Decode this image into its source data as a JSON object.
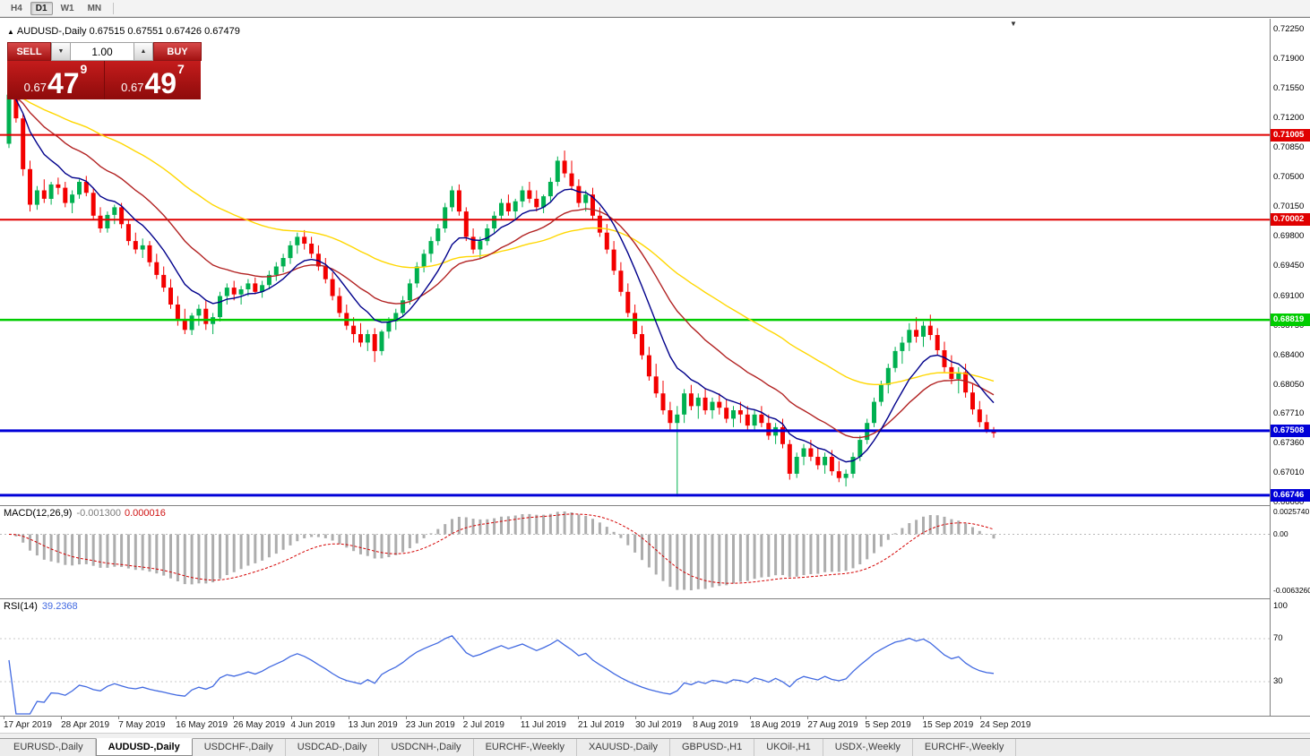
{
  "toolbar": {
    "periods": [
      "H4",
      "D1",
      "W1",
      "MN"
    ],
    "active": "D1"
  },
  "window": {
    "title_symbol": "AUDUSD-,Daily",
    "title_ohlc": "0.67515 0.67551 0.67426 0.67479"
  },
  "trade_panel": {
    "sell_label": "SELL",
    "buy_label": "BUY",
    "volume": "1.00",
    "sell_price": {
      "prefix": "0.67",
      "big": "47",
      "sup": "9"
    },
    "buy_price": {
      "prefix": "0.67",
      "big": "49",
      "sup": "7"
    }
  },
  "chart_data": {
    "type": "candlestick",
    "symbol": "AUDUSD-",
    "timeframe": "Daily",
    "colors": {
      "up": "#00B050",
      "down": "#F30000"
    },
    "y_axis": {
      "top_price": 0.7225,
      "bottom_price": 0.6666,
      "labels": [
        "0.72250",
        "0.71900",
        "0.71550",
        "0.71200",
        "0.70850",
        "0.70500",
        "0.70150",
        "0.69800",
        "0.69450",
        "0.69100",
        "0.68750",
        "0.68400",
        "0.68050",
        "0.67710",
        "0.67360",
        "0.67010",
        "0.66660"
      ]
    },
    "x_labels": [
      "17 Apr 2019",
      "28 Apr 2019",
      "7 May 2019",
      "16 May 2019",
      "26 May 2019",
      "4 Jun 2019",
      "13 Jun 2019",
      "23 Jun 2019",
      "2 Jul 2019",
      "11 Jul 2019",
      "21 Jul 2019",
      "30 Jul 2019",
      "8 Aug 2019",
      "18 Aug 2019",
      "27 Aug 2019",
      "5 Sep 2019",
      "15 Sep 2019",
      "24 Sep 2019"
    ],
    "h_lines": [
      {
        "price": 0.71005,
        "label": "0.71005",
        "color": "#E00000",
        "width": 2
      },
      {
        "price": 0.70002,
        "label": "0.70002",
        "color": "#E00000",
        "width": 2
      },
      {
        "price": 0.68819,
        "label": "0.68819",
        "color": "#00CC00",
        "width": 2.5
      },
      {
        "price": 0.67508,
        "label": "0.67508",
        "color": "#0000D8",
        "width": 3
      },
      {
        "price": 0.66746,
        "label": "0.66746",
        "color": "#0000D8",
        "width": 3
      }
    ],
    "moving_averages": [
      {
        "name": "ma-slow",
        "period": 50,
        "color": "#FFD700"
      },
      {
        "name": "ma-mid",
        "period": 21,
        "color": "#B22222"
      },
      {
        "name": "ma-fast",
        "period": 9,
        "color": "#00008B"
      }
    ],
    "candles": [
      [
        0.709,
        0.715,
        0.7085,
        0.7148
      ],
      [
        0.7148,
        0.7152,
        0.7115,
        0.712
      ],
      [
        0.712,
        0.7125,
        0.7052,
        0.706
      ],
      [
        0.706,
        0.707,
        0.701,
        0.7018
      ],
      [
        0.7018,
        0.704,
        0.7012,
        0.7035
      ],
      [
        0.7035,
        0.7048,
        0.702,
        0.7025
      ],
      [
        0.7025,
        0.7045,
        0.7018,
        0.7042
      ],
      [
        0.7042,
        0.705,
        0.703,
        0.7038
      ],
      [
        0.7038,
        0.7045,
        0.7015,
        0.702
      ],
      [
        0.702,
        0.7035,
        0.7008,
        0.703
      ],
      [
        0.703,
        0.7048,
        0.7025,
        0.7045
      ],
      [
        0.7045,
        0.7052,
        0.7028,
        0.7032
      ],
      [
        0.7032,
        0.7038,
        0.7,
        0.7005
      ],
      [
        0.7005,
        0.7015,
        0.6985,
        0.699
      ],
      [
        0.699,
        0.701,
        0.6985,
        0.7006
      ],
      [
        0.7006,
        0.7018,
        0.6995,
        0.7015
      ],
      [
        0.7015,
        0.702,
        0.699,
        0.6995
      ],
      [
        0.6995,
        0.7,
        0.697,
        0.6975
      ],
      [
        0.6975,
        0.6985,
        0.696,
        0.6965
      ],
      [
        0.6965,
        0.6978,
        0.6955,
        0.697
      ],
      [
        0.697,
        0.6975,
        0.6945,
        0.695
      ],
      [
        0.695,
        0.696,
        0.693,
        0.6935
      ],
      [
        0.6935,
        0.6945,
        0.6915,
        0.692
      ],
      [
        0.692,
        0.693,
        0.6895,
        0.69
      ],
      [
        0.69,
        0.691,
        0.6875,
        0.6882
      ],
      [
        0.6882,
        0.6895,
        0.6865,
        0.687
      ],
      [
        0.687,
        0.689,
        0.6864,
        0.6887
      ],
      [
        0.6887,
        0.69,
        0.6875,
        0.6895
      ],
      [
        0.6895,
        0.6905,
        0.687,
        0.6877
      ],
      [
        0.6877,
        0.689,
        0.6865,
        0.6885
      ],
      [
        0.6885,
        0.6915,
        0.688,
        0.691
      ],
      [
        0.691,
        0.6925,
        0.69,
        0.692
      ],
      [
        0.692,
        0.6928,
        0.6905,
        0.6912
      ],
      [
        0.6912,
        0.6922,
        0.69,
        0.6918
      ],
      [
        0.6918,
        0.693,
        0.691,
        0.6925
      ],
      [
        0.6925,
        0.6932,
        0.6912,
        0.6915
      ],
      [
        0.6915,
        0.6928,
        0.6908,
        0.6923
      ],
      [
        0.6923,
        0.694,
        0.6918,
        0.6935
      ],
      [
        0.6935,
        0.695,
        0.6928,
        0.6945
      ],
      [
        0.6945,
        0.696,
        0.6938,
        0.6955
      ],
      [
        0.6955,
        0.6975,
        0.6948,
        0.697
      ],
      [
        0.697,
        0.6985,
        0.696,
        0.698
      ],
      [
        0.698,
        0.6988,
        0.6965,
        0.6972
      ],
      [
        0.6972,
        0.698,
        0.6955,
        0.696
      ],
      [
        0.696,
        0.697,
        0.694,
        0.6945
      ],
      [
        0.6945,
        0.6955,
        0.6925,
        0.693
      ],
      [
        0.693,
        0.6938,
        0.6905,
        0.691
      ],
      [
        0.691,
        0.692,
        0.6885,
        0.689
      ],
      [
        0.689,
        0.69,
        0.687,
        0.6875
      ],
      [
        0.6875,
        0.6885,
        0.6855,
        0.6865
      ],
      [
        0.6865,
        0.6878,
        0.685,
        0.6855
      ],
      [
        0.6855,
        0.687,
        0.6845,
        0.6865
      ],
      [
        0.6865,
        0.6872,
        0.6832,
        0.6845
      ],
      [
        0.6845,
        0.687,
        0.684,
        0.6868
      ],
      [
        0.6868,
        0.6885,
        0.686,
        0.688
      ],
      [
        0.688,
        0.6895,
        0.687,
        0.689
      ],
      [
        0.689,
        0.691,
        0.6885,
        0.6905
      ],
      [
        0.6905,
        0.693,
        0.69,
        0.6925
      ],
      [
        0.6925,
        0.695,
        0.692,
        0.6945
      ],
      [
        0.6945,
        0.6965,
        0.6938,
        0.696
      ],
      [
        0.696,
        0.698,
        0.695,
        0.6975
      ],
      [
        0.6975,
        0.6995,
        0.697,
        0.699
      ],
      [
        0.699,
        0.702,
        0.6985,
        0.7015
      ],
      [
        0.7015,
        0.704,
        0.701,
        0.7035
      ],
      [
        0.7035,
        0.7042,
        0.7005,
        0.701
      ],
      [
        0.701,
        0.7015,
        0.6975,
        0.698
      ],
      [
        0.698,
        0.699,
        0.696,
        0.6965
      ],
      [
        0.6965,
        0.698,
        0.6955,
        0.6975
      ],
      [
        0.6975,
        0.6995,
        0.697,
        0.699
      ],
      [
        0.699,
        0.701,
        0.6985,
        0.7005
      ],
      [
        0.7005,
        0.7025,
        0.7,
        0.702
      ],
      [
        0.702,
        0.703,
        0.7005,
        0.701
      ],
      [
        0.701,
        0.7025,
        0.7,
        0.7022
      ],
      [
        0.7022,
        0.704,
        0.7015,
        0.7035
      ],
      [
        0.7035,
        0.7045,
        0.702,
        0.7025
      ],
      [
        0.7025,
        0.7035,
        0.701,
        0.7015
      ],
      [
        0.7015,
        0.703,
        0.7008,
        0.7028
      ],
      [
        0.7028,
        0.705,
        0.7022,
        0.7045
      ],
      [
        0.7045,
        0.7075,
        0.704,
        0.707
      ],
      [
        0.707,
        0.7082,
        0.705,
        0.7055
      ],
      [
        0.7055,
        0.707,
        0.7035,
        0.704
      ],
      [
        0.704,
        0.7048,
        0.7015,
        0.702
      ],
      [
        0.702,
        0.7035,
        0.701,
        0.703
      ],
      [
        0.703,
        0.7038,
        0.7,
        0.7005
      ],
      [
        0.7005,
        0.7015,
        0.698,
        0.6985
      ],
      [
        0.6985,
        0.6995,
        0.696,
        0.6965
      ],
      [
        0.6965,
        0.6975,
        0.6935,
        0.694
      ],
      [
        0.694,
        0.695,
        0.691,
        0.6915
      ],
      [
        0.6915,
        0.6925,
        0.6885,
        0.689
      ],
      [
        0.689,
        0.69,
        0.686,
        0.6865
      ],
      [
        0.6865,
        0.6875,
        0.6835,
        0.684
      ],
      [
        0.684,
        0.685,
        0.681,
        0.6815
      ],
      [
        0.6815,
        0.683,
        0.679,
        0.6795
      ],
      [
        0.6795,
        0.681,
        0.677,
        0.6775
      ],
      [
        0.6775,
        0.6785,
        0.675,
        0.676
      ],
      [
        0.676,
        0.678,
        0.6673,
        0.677
      ],
      [
        0.677,
        0.68,
        0.676,
        0.6795
      ],
      [
        0.6795,
        0.6805,
        0.6775,
        0.678
      ],
      [
        0.678,
        0.6795,
        0.6765,
        0.679
      ],
      [
        0.679,
        0.68,
        0.677,
        0.6775
      ],
      [
        0.6775,
        0.679,
        0.6765,
        0.6785
      ],
      [
        0.6785,
        0.6795,
        0.677,
        0.6778
      ],
      [
        0.6778,
        0.6788,
        0.676,
        0.6765
      ],
      [
        0.6765,
        0.678,
        0.6755,
        0.6775
      ],
      [
        0.6775,
        0.6785,
        0.676,
        0.677
      ],
      [
        0.677,
        0.678,
        0.675,
        0.6757
      ],
      [
        0.6757,
        0.6775,
        0.675,
        0.677
      ],
      [
        0.677,
        0.678,
        0.6755,
        0.676
      ],
      [
        0.676,
        0.677,
        0.674,
        0.6745
      ],
      [
        0.6745,
        0.676,
        0.6735,
        0.6755
      ],
      [
        0.6755,
        0.6765,
        0.673,
        0.6735
      ],
      [
        0.6735,
        0.674,
        0.6693,
        0.67
      ],
      [
        0.67,
        0.6725,
        0.6695,
        0.672
      ],
      [
        0.672,
        0.6735,
        0.671,
        0.673
      ],
      [
        0.673,
        0.674,
        0.6715,
        0.672
      ],
      [
        0.672,
        0.673,
        0.6705,
        0.671
      ],
      [
        0.671,
        0.6725,
        0.67,
        0.672
      ],
      [
        0.672,
        0.6728,
        0.6698,
        0.6703
      ],
      [
        0.6703,
        0.6715,
        0.669,
        0.6695
      ],
      [
        0.6695,
        0.6705,
        0.6685,
        0.67
      ],
      [
        0.67,
        0.6725,
        0.6695,
        0.672
      ],
      [
        0.672,
        0.6745,
        0.6715,
        0.674
      ],
      [
        0.674,
        0.6765,
        0.6735,
        0.676
      ],
      [
        0.676,
        0.679,
        0.6755,
        0.6785
      ],
      [
        0.6785,
        0.681,
        0.678,
        0.6805
      ],
      [
        0.6805,
        0.683,
        0.6795,
        0.6825
      ],
      [
        0.6825,
        0.685,
        0.682,
        0.6845
      ],
      [
        0.6845,
        0.6862,
        0.683,
        0.6855
      ],
      [
        0.6855,
        0.6878,
        0.6845,
        0.687
      ],
      [
        0.687,
        0.6885,
        0.6855,
        0.6862
      ],
      [
        0.6862,
        0.688,
        0.685,
        0.6875
      ],
      [
        0.6875,
        0.6888,
        0.6858,
        0.6864
      ],
      [
        0.6864,
        0.6872,
        0.684,
        0.6846
      ],
      [
        0.6846,
        0.6856,
        0.682,
        0.6826
      ],
      [
        0.6826,
        0.684,
        0.6806,
        0.6812
      ],
      [
        0.6812,
        0.6826,
        0.6795,
        0.682
      ],
      [
        0.682,
        0.683,
        0.679,
        0.6796
      ],
      [
        0.6796,
        0.6806,
        0.677,
        0.6776
      ],
      [
        0.6776,
        0.6786,
        0.6755,
        0.6761
      ],
      [
        0.6761,
        0.677,
        0.6748,
        0.6752
      ],
      [
        0.67515,
        0.67551,
        0.67426,
        0.67479
      ]
    ]
  },
  "macd": {
    "name": "MACD(12,26,9)",
    "value_main": "-0.001300",
    "value_signal": "0.000016",
    "fast": 12,
    "slow": 26,
    "signal": 9,
    "axis_max": 0.002574,
    "axis_min": -0.006326,
    "axis_labels": [
      "0.0025740",
      "0.00",
      "-0.0063260"
    ],
    "histogram_color": "#ADADAD",
    "signal_color": "#D40000"
  },
  "rsi": {
    "name": "RSI(14)",
    "value": "39.2368",
    "period": 14,
    "levels": [
      70,
      30
    ],
    "axis_labels": [
      "100",
      "70",
      "30"
    ],
    "color": "#4169E1"
  },
  "tabs": [
    "EURUSD-,Daily",
    "AUDUSD-,Daily",
    "USDCHF-,Daily",
    "USDCAD-,Daily",
    "USDCNH-,Daily",
    "EURCHF-,Weekly",
    "XAUUSD-,Daily",
    "GBPUSD-,H1",
    "UKOil-,H1",
    "USDX-,Weekly",
    "EURCHF-,Weekly"
  ],
  "active_tab_index": 1
}
